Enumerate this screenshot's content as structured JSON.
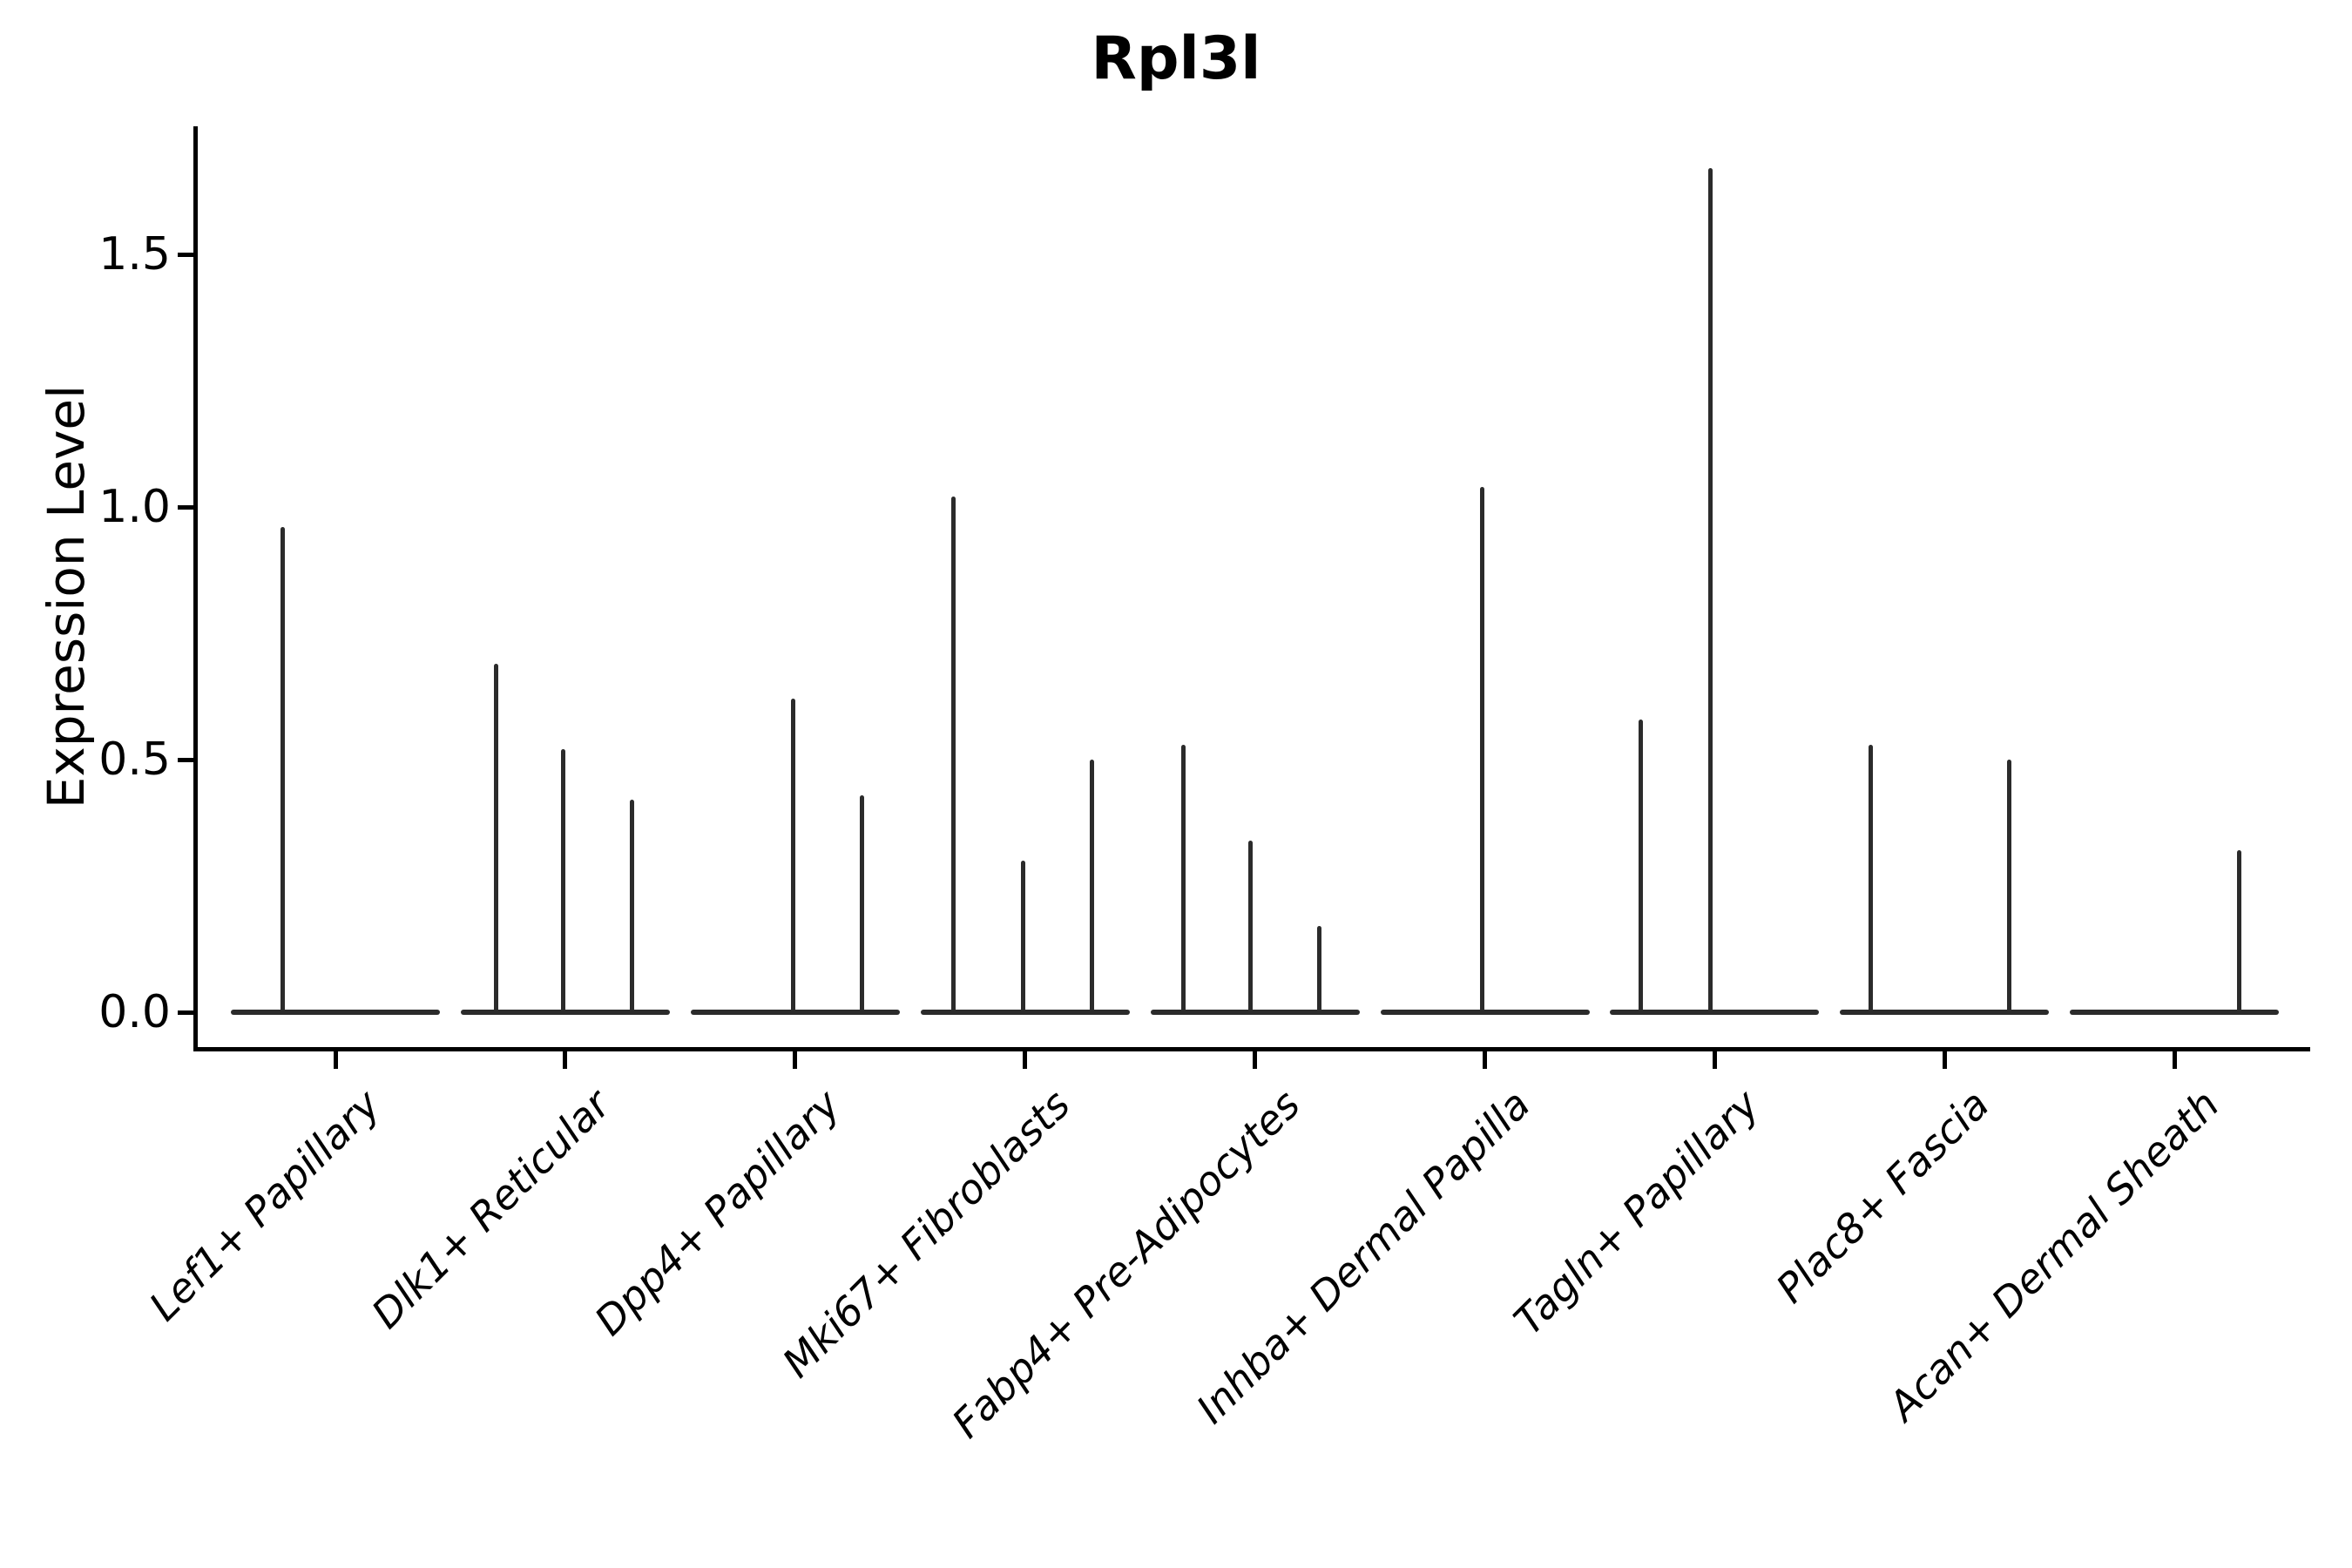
{
  "chart_data": {
    "type": "violin",
    "title": "Rpl3l",
    "xlabel": "",
    "ylabel": "Expression Level",
    "ylim": [
      0,
      1.75
    ],
    "yticks": [
      0.0,
      0.5,
      1.0,
      1.5
    ],
    "ytick_labels": [
      "0.0",
      "0.5",
      "1.0",
      "1.5"
    ],
    "grid": false,
    "legend": "none",
    "categories": [
      "Lef1+ Papillary",
      "Dlk1+ Reticular",
      "Dpp4+ Papillary",
      "Mki67+ Fibroblasts",
      "Fabp4+ Pre-Adipocytes",
      "Inhba+ Dermal Papilla",
      "Tagln+ Papillary",
      "Plac8+ Fascia",
      "Acan+ Dermal Sheath"
    ],
    "violins": [
      {
        "category": "Lef1+ Papillary",
        "baseline_value": 0,
        "spikes": [
          {
            "x_offset": -0.23,
            "value": 0.96
          }
        ]
      },
      {
        "category": "Dlk1+ Reticular",
        "baseline_value": 0,
        "spikes": [
          {
            "x_offset": -0.3,
            "value": 0.69
          },
          {
            "x_offset": -0.01,
            "value": 0.52
          },
          {
            "x_offset": 0.29,
            "value": 0.42
          }
        ]
      },
      {
        "category": "Dpp4+ Papillary",
        "baseline_value": 0,
        "spikes": [
          {
            "x_offset": -0.01,
            "value": 0.62
          },
          {
            "x_offset": 0.29,
            "value": 0.43
          }
        ]
      },
      {
        "category": "Mki67+ Fibroblasts",
        "baseline_value": 0,
        "spikes": [
          {
            "x_offset": -0.31,
            "value": 1.02
          },
          {
            "x_offset": -0.01,
            "value": 0.3
          },
          {
            "x_offset": 0.29,
            "value": 0.5
          }
        ]
      },
      {
        "category": "Fabp4+ Pre-Adipocytes",
        "baseline_value": 0,
        "spikes": [
          {
            "x_offset": -0.31,
            "value": 0.53
          },
          {
            "x_offset": -0.02,
            "value": 0.34
          },
          {
            "x_offset": 0.28,
            "value": 0.17
          }
        ]
      },
      {
        "category": "Inhba+ Dermal Papilla",
        "baseline_value": 0,
        "spikes": [
          {
            "x_offset": -0.01,
            "value": 1.04
          }
        ]
      },
      {
        "category": "Tagln+ Papillary",
        "baseline_value": 0,
        "spikes": [
          {
            "x_offset": -0.32,
            "value": 0.58
          },
          {
            "x_offset": -0.02,
            "value": 1.67
          }
        ]
      },
      {
        "category": "Plac8+ Fascia",
        "baseline_value": 0,
        "spikes": [
          {
            "x_offset": -0.32,
            "value": 0.53
          },
          {
            "x_offset": 0.28,
            "value": 0.5
          }
        ]
      },
      {
        "category": "Acan+ Dermal Sheath",
        "baseline_value": 0,
        "spikes": [
          {
            "x_offset": 0.28,
            "value": 0.32
          }
        ]
      }
    ],
    "colors": {
      "line": "#2b2b2b",
      "axis": "#000000",
      "background": "#ffffff"
    }
  }
}
